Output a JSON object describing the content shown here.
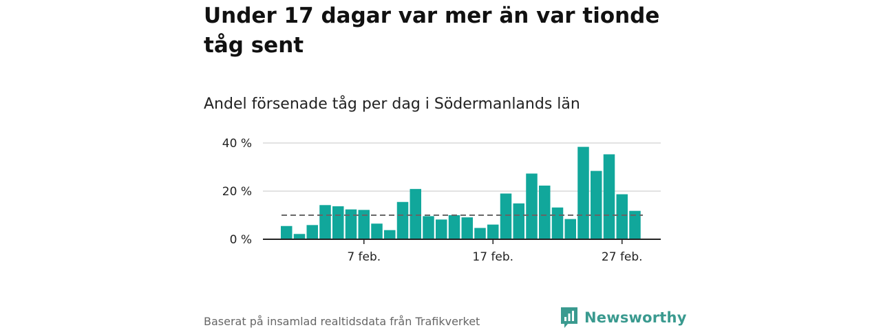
{
  "header": {
    "title": "Under 17 dagar var mer än var tionde tåg sent",
    "subtitle": "Andel försenade tåg per dag i Södermanlands län"
  },
  "footer": {
    "source": "Baserat på insamlad realtidsdata från Trafikverket",
    "brand": "Newsworthy"
  },
  "colors": {
    "bar": "#11a79b",
    "reference": "#666666",
    "grid": "#d9d9d9",
    "axis": "#222222",
    "brand": "#3a9a8f"
  },
  "icons": [
    "newsworthy-logo-icon"
  ],
  "chart_data": {
    "type": "bar",
    "x_type": "date",
    "categories": [
      "2024-02-01",
      "2024-02-02",
      "2024-02-03",
      "2024-02-04",
      "2024-02-05",
      "2024-02-06",
      "2024-02-07",
      "2024-02-08",
      "2024-02-09",
      "2024-02-10",
      "2024-02-11",
      "2024-02-12",
      "2024-02-13",
      "2024-02-14",
      "2024-02-15",
      "2024-02-16",
      "2024-02-17",
      "2024-02-18",
      "2024-02-19",
      "2024-02-20",
      "2024-02-21",
      "2024-02-22",
      "2024-02-23",
      "2024-02-24",
      "2024-02-25",
      "2024-02-26",
      "2024-02-27",
      "2024-02-28"
    ],
    "values": [
      5.5,
      2.2,
      5.9,
      14.2,
      13.7,
      12.4,
      12.2,
      6.5,
      3.8,
      15.5,
      20.9,
      9.6,
      8.2,
      10.0,
      9.1,
      4.7,
      6.1,
      19.0,
      14.9,
      27.3,
      22.3,
      13.2,
      8.4,
      38.4,
      28.4,
      35.3,
      18.7,
      11.8
    ],
    "reference_line": 10,
    "xticks": [
      {
        "date": "2024-02-07",
        "label": "7 feb."
      },
      {
        "date": "2024-02-17",
        "label": "17 feb."
      },
      {
        "date": "2024-02-27",
        "label": "27 feb."
      }
    ],
    "yticks": [
      {
        "value": 0,
        "label": "0 %"
      },
      {
        "value": 20,
        "label": "20 %"
      },
      {
        "value": 40,
        "label": "40 %"
      }
    ],
    "ylim": [
      0,
      40
    ],
    "grid": true,
    "legend": "none"
  }
}
